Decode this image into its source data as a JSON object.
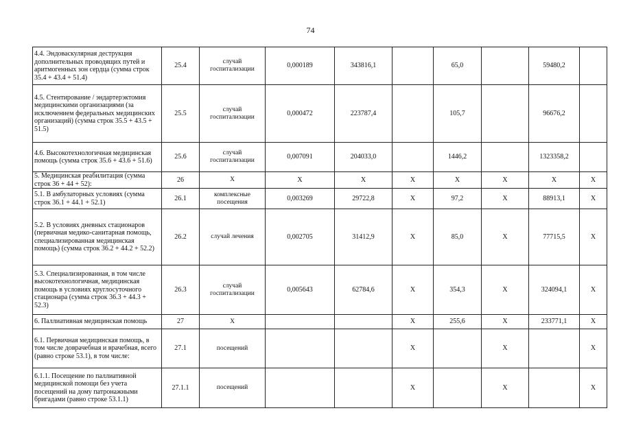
{
  "page_number": "74",
  "rows": [
    {
      "name": "4.4. Эндоваскулярная деструкция дополнительных проводящих путей и аритмогенных зон сердца (сумма строк 35.4 + 43.4 + 51.4)",
      "code": "25.4",
      "unit": "случай госпитализации",
      "norm": "0,000189",
      "cost": "343816,1",
      "c6": "",
      "c7": "65,0",
      "c8": "",
      "c9": "59480,2",
      "c10": ""
    },
    {
      "name": "4.5. Стентирование / эндартерэктомия медицинскими организациями (за исключением федеральных медицинских организаций) (сумма строк 35.5 + 43.5 + 51.5)",
      "code": "25.5",
      "unit": "случай госпитализации",
      "norm": "0,000472",
      "cost": "223787,4",
      "c6": "",
      "c7": "105,7",
      "c8": "",
      "c9": "96676,2",
      "c10": ""
    },
    {
      "name": "4.6. Высокотехнологичная медицинская помощь (сумма строк 35.6 + 43.6 + 51.6)",
      "code": "25.6",
      "unit": "случай госпитализации",
      "norm": "0,007091",
      "cost": "204033,0",
      "c6": "",
      "c7": "1446,2",
      "c8": "",
      "c9": "1323358,2",
      "c10": ""
    },
    {
      "name": "5. Медицинская реабилитация (сумма строк 36 + 44 + 52):",
      "code": "26",
      "unit": "X",
      "norm": "X",
      "cost": "X",
      "c6": "X",
      "c7": "X",
      "c8": "X",
      "c9": "X",
      "c10": "X"
    },
    {
      "name": "5.1. В амбулаторных условиях (сумма строк 36.1 + 44.1 + 52.1)",
      "code": "26.1",
      "unit": "комплексные посещения",
      "norm": "0,003269",
      "cost": "29722,8",
      "c6": "X",
      "c7": "97,2",
      "c8": "X",
      "c9": "88913,1",
      "c10": "X"
    },
    {
      "name": "5.2. В условиях дневных стационаров (первичная медико-санитарная помощь, специализированная медицинская помощь) (сумма строк 36.2 + 44.2 + 52.2)",
      "code": "26.2",
      "unit": "случай лечения",
      "norm": "0,002705",
      "cost": "31412,9",
      "c6": "X",
      "c7": "85,0",
      "c8": "X",
      "c9": "77715,5",
      "c10": "X"
    },
    {
      "name": "5.3. Специализированная, в том числе высокотехнологичная, медицинская помощь в условиях круглосуточного стационара (сумма строк 36.3 + 44.3 + 52.3)",
      "code": "26.3",
      "unit": "случай госпитализации",
      "norm": "0,005643",
      "cost": "62784,6",
      "c6": "X",
      "c7": "354,3",
      "c8": "X",
      "c9": "324094,1",
      "c10": "X"
    },
    {
      "name": "6. Паллиативная медицинская помощь",
      "code": "27",
      "unit": "X",
      "norm": "",
      "cost": "",
      "c6": "X",
      "c7": "255,6",
      "c8": "X",
      "c9": "233771,1",
      "c10": "X"
    },
    {
      "name": "6.1. Первичная медицинская помощь, в том числе доврачебная и врачебная, всего (равно строке 53.1), в том числе:",
      "code": "27.1",
      "unit": "посещений",
      "norm": "",
      "cost": "",
      "c6": "X",
      "c7": "",
      "c8": "X",
      "c9": "",
      "c10": "X"
    },
    {
      "name": "6.1.1. Посещение по паллиативной медицинской помощи без учета посещений на дому патронажными бригадами (равно строке 53.1.1)",
      "code": "27.1.1",
      "unit": "посещений",
      "norm": "",
      "cost": "",
      "c6": "X",
      "c7": "",
      "c8": "X",
      "c9": "",
      "c10": "X"
    }
  ]
}
